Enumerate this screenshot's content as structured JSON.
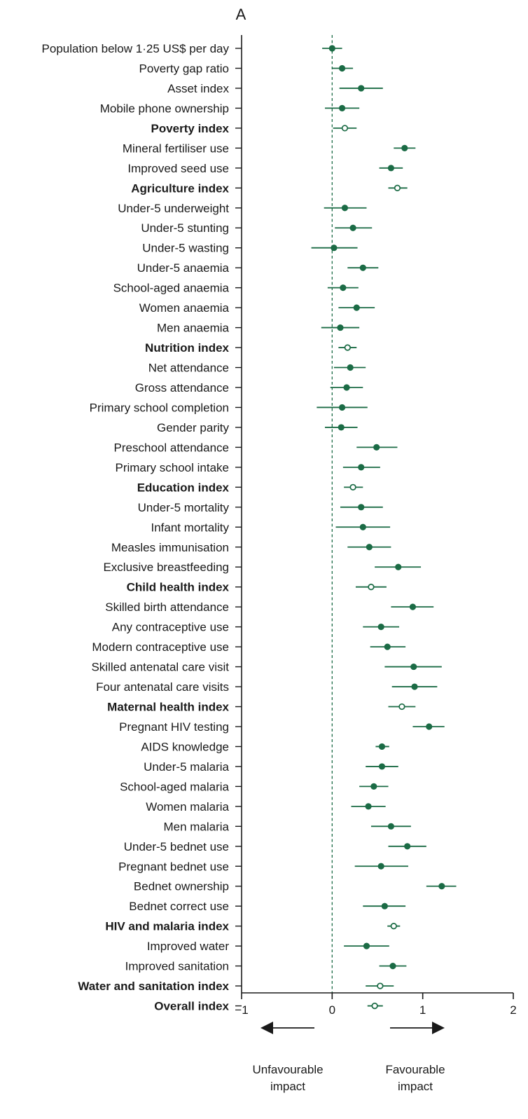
{
  "chart_data": {
    "type": "scatter",
    "subtype": "forest-plot",
    "panel_label": "A",
    "xlim": [
      -1,
      2
    ],
    "xticks": [
      "−1",
      "0",
      "1",
      "2"
    ],
    "xtick_values": [
      -1,
      0,
      1,
      2
    ],
    "reference_line": 0,
    "colors": {
      "marker": "#1b6b45",
      "axis": "#1a1a1a",
      "reference": "#1b6b45"
    },
    "direction_labels": {
      "left": [
        "Unfavourable",
        "impact"
      ],
      "right": [
        "Favourable",
        "impact"
      ]
    },
    "rows": [
      {
        "label": "Population below 1·25 US$ per day",
        "estimate": 0.0,
        "lower": -0.11,
        "upper": 0.11,
        "index": false
      },
      {
        "label": "Poverty gap ratio",
        "estimate": 0.11,
        "lower": 0.0,
        "upper": 0.23,
        "index": false
      },
      {
        "label": "Asset index",
        "estimate": 0.32,
        "lower": 0.08,
        "upper": 0.56,
        "index": false
      },
      {
        "label": "Mobile phone ownership",
        "estimate": 0.11,
        "lower": -0.08,
        "upper": 0.3,
        "index": false
      },
      {
        "label": "Poverty index",
        "estimate": 0.14,
        "lower": 0.01,
        "upper": 0.27,
        "index": true
      },
      {
        "label": "Mineral fertiliser use",
        "estimate": 0.8,
        "lower": 0.68,
        "upper": 0.92,
        "index": false
      },
      {
        "label": "Improved seed use",
        "estimate": 0.65,
        "lower": 0.52,
        "upper": 0.78,
        "index": false
      },
      {
        "label": "Agriculture index",
        "estimate": 0.72,
        "lower": 0.62,
        "upper": 0.83,
        "index": true
      },
      {
        "label": "Under-5 underweight",
        "estimate": 0.14,
        "lower": -0.09,
        "upper": 0.38,
        "index": false
      },
      {
        "label": "Under-5 stunting",
        "estimate": 0.23,
        "lower": 0.03,
        "upper": 0.44,
        "index": false
      },
      {
        "label": "Under-5 wasting",
        "estimate": 0.02,
        "lower": -0.23,
        "upper": 0.28,
        "index": false
      },
      {
        "label": "Under-5 anaemia",
        "estimate": 0.34,
        "lower": 0.17,
        "upper": 0.51,
        "index": false
      },
      {
        "label": "School-aged anaemia",
        "estimate": 0.12,
        "lower": -0.05,
        "upper": 0.29,
        "index": false
      },
      {
        "label": "Women anaemia",
        "estimate": 0.27,
        "lower": 0.07,
        "upper": 0.47,
        "index": false
      },
      {
        "label": "Men anaemia",
        "estimate": 0.09,
        "lower": -0.12,
        "upper": 0.3,
        "index": false
      },
      {
        "label": "Nutrition index",
        "estimate": 0.17,
        "lower": 0.07,
        "upper": 0.27,
        "index": true
      },
      {
        "label": "Net attendance",
        "estimate": 0.2,
        "lower": 0.02,
        "upper": 0.37,
        "index": false
      },
      {
        "label": "Gross attendance",
        "estimate": 0.16,
        "lower": -0.02,
        "upper": 0.34,
        "index": false
      },
      {
        "label": "Primary school completion",
        "estimate": 0.11,
        "lower": -0.17,
        "upper": 0.39,
        "index": false
      },
      {
        "label": "Gender parity",
        "estimate": 0.1,
        "lower": -0.08,
        "upper": 0.28,
        "index": false
      },
      {
        "label": "Preschool attendance",
        "estimate": 0.49,
        "lower": 0.27,
        "upper": 0.72,
        "index": false
      },
      {
        "label": "Primary school intake",
        "estimate": 0.32,
        "lower": 0.12,
        "upper": 0.53,
        "index": false
      },
      {
        "label": "Education index",
        "estimate": 0.23,
        "lower": 0.13,
        "upper": 0.34,
        "index": true
      },
      {
        "label": "Under-5 mortality",
        "estimate": 0.32,
        "lower": 0.09,
        "upper": 0.56,
        "index": false
      },
      {
        "label": "Infant mortality",
        "estimate": 0.34,
        "lower": 0.04,
        "upper": 0.64,
        "index": false
      },
      {
        "label": "Measles immunisation",
        "estimate": 0.41,
        "lower": 0.17,
        "upper": 0.65,
        "index": false
      },
      {
        "label": "Exclusive breastfeeding",
        "estimate": 0.73,
        "lower": 0.47,
        "upper": 0.98,
        "index": false
      },
      {
        "label": "Child health index",
        "estimate": 0.43,
        "lower": 0.26,
        "upper": 0.6,
        "index": true
      },
      {
        "label": "Skilled birth attendance",
        "estimate": 0.89,
        "lower": 0.65,
        "upper": 1.12,
        "index": false
      },
      {
        "label": "Any contraceptive use",
        "estimate": 0.54,
        "lower": 0.34,
        "upper": 0.74,
        "index": false
      },
      {
        "label": "Modern contraceptive use",
        "estimate": 0.61,
        "lower": 0.42,
        "upper": 0.81,
        "index": false
      },
      {
        "label": "Skilled antenatal care visit",
        "estimate": 0.9,
        "lower": 0.58,
        "upper": 1.21,
        "index": false
      },
      {
        "label": "Four antenatal care visits",
        "estimate": 0.91,
        "lower": 0.66,
        "upper": 1.16,
        "index": false
      },
      {
        "label": "Maternal health index",
        "estimate": 0.77,
        "lower": 0.62,
        "upper": 0.92,
        "index": true
      },
      {
        "label": "Pregnant HIV testing",
        "estimate": 1.07,
        "lower": 0.89,
        "upper": 1.24,
        "index": false
      },
      {
        "label": "AIDS knowledge",
        "estimate": 0.55,
        "lower": 0.48,
        "upper": 0.63,
        "index": false
      },
      {
        "label": "Under-5 malaria",
        "estimate": 0.55,
        "lower": 0.37,
        "upper": 0.73,
        "index": false
      },
      {
        "label": "School-aged malaria",
        "estimate": 0.46,
        "lower": 0.3,
        "upper": 0.62,
        "index": false
      },
      {
        "label": "Women malaria",
        "estimate": 0.4,
        "lower": 0.21,
        "upper": 0.59,
        "index": false
      },
      {
        "label": "Men malaria",
        "estimate": 0.65,
        "lower": 0.43,
        "upper": 0.87,
        "index": false
      },
      {
        "label": "Under-5 bednet use",
        "estimate": 0.83,
        "lower": 0.62,
        "upper": 1.04,
        "index": false
      },
      {
        "label": "Pregnant bednet use",
        "estimate": 0.54,
        "lower": 0.25,
        "upper": 0.84,
        "index": false
      },
      {
        "label": "Bednet ownership",
        "estimate": 1.21,
        "lower": 1.04,
        "upper": 1.37,
        "index": false
      },
      {
        "label": "Bednet correct use",
        "estimate": 0.58,
        "lower": 0.34,
        "upper": 0.81,
        "index": false
      },
      {
        "label": "HIV and malaria index",
        "estimate": 0.68,
        "lower": 0.61,
        "upper": 0.75,
        "index": true
      },
      {
        "label": "Improved water",
        "estimate": 0.38,
        "lower": 0.13,
        "upper": 0.63,
        "index": false
      },
      {
        "label": "Improved sanitation",
        "estimate": 0.67,
        "lower": 0.52,
        "upper": 0.82,
        "index": false
      },
      {
        "label": "Water and sanitation index",
        "estimate": 0.53,
        "lower": 0.37,
        "upper": 0.68,
        "index": true
      },
      {
        "label": "Overall index",
        "estimate": 0.47,
        "lower": 0.39,
        "upper": 0.56,
        "index": true
      }
    ]
  }
}
